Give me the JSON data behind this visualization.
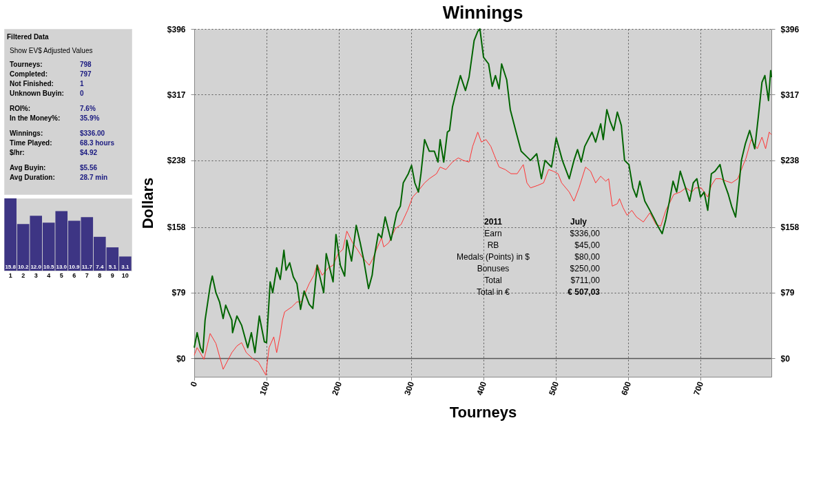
{
  "chart_data": [
    {
      "type": "other",
      "title": "Filtered Data",
      "annotations": [
        "Show EV$ Adjusted Values",
        "Tourneys:",
        "798",
        "Completed:",
        "797",
        "Not Finished:",
        "1",
        "Unknown Buyin:",
        "0",
        "ROI%:",
        "7.6%",
        "In the Money%:",
        "35.9%",
        "Winnings:",
        "$336.00",
        "Time Played:",
        "68.3 hours",
        "$/hr:",
        "$4.92",
        "Avg Buyin:",
        "$5.56",
        "Avg Duration:",
        "28.7 min"
      ]
    },
    {
      "type": "bar",
      "categories": [
        "1",
        "2",
        "3",
        "4",
        "5",
        "6",
        "7",
        "8",
        "9",
        "10"
      ],
      "values": [
        15.8,
        10.2,
        12.0,
        10.5,
        13.0,
        10.9,
        11.7,
        7.4,
        5.1,
        3.1
      ],
      "color": "#3d3584",
      "value_labels": [
        "15.8",
        "10.2",
        "12.0",
        "10.5",
        "13.0",
        "10.9",
        "11.7",
        "7.4",
        "5.1",
        "3.1"
      ]
    },
    {
      "type": "line",
      "title": "Winnings",
      "xlabel": "Tourneys",
      "ylabel": "Dollars",
      "xlim": [
        0,
        798
      ],
      "xticks": [
        0,
        100,
        200,
        300,
        400,
        500,
        600,
        700
      ],
      "ylim": [
        -22,
        396
      ],
      "yticks": [
        {
          "value": 0,
          "label": "$0"
        },
        {
          "value": 79,
          "label": "$79"
        },
        {
          "value": 158,
          "label": "$158"
        },
        {
          "value": 238,
          "label": "$238"
        },
        {
          "value": 317,
          "label": "$317"
        },
        {
          "value": 396,
          "label": "$396"
        }
      ],
      "y2lim": [
        -22,
        396
      ],
      "y2ticks": [
        {
          "value": 0,
          "label": "$0"
        },
        {
          "value": 79,
          "label": "$79"
        },
        {
          "value": 158,
          "label": "$158"
        },
        {
          "value": 238,
          "label": "$238"
        },
        {
          "value": 317,
          "label": "$317"
        },
        {
          "value": 396,
          "label": "$396"
        }
      ],
      "grid": true,
      "marker": "none",
      "ref_lines": [
        {
          "axis": "y",
          "value": 0,
          "color": "#555555"
        }
      ],
      "annotations": [
        "2011",
        "July",
        "Earn",
        "$336,00",
        "RB",
        "$45,00",
        "Medals (Points) in $",
        "$80,00",
        "Bonuses",
        "$250,00",
        "Total",
        "$711,00",
        "Total in €",
        "€ 507,03"
      ],
      "series": [
        {
          "color": "#ff3333",
          "x": [
            0,
            4,
            13.5,
            22,
            30,
            40,
            52,
            59,
            65.5,
            72,
            82,
            88.5,
            99,
            103.5,
            110,
            114,
            119,
            122,
            125,
            135,
            142,
            148,
            159,
            165.5,
            170,
            177,
            185.5,
            192,
            199,
            205.5,
            211,
            219,
            225.5,
            232,
            242,
            247,
            252,
            259,
            262,
            269,
            278,
            286,
            295,
            302,
            308.5,
            318.5,
            325,
            335,
            340,
            348,
            357,
            365,
            372,
            380,
            385,
            392,
            397,
            403.5,
            410,
            415,
            421.5,
            430,
            438,
            446.5,
            455,
            460,
            465,
            475,
            483,
            490,
            496.5,
            503,
            508,
            518.5,
            525,
            532,
            541,
            548,
            555,
            562,
            569,
            573,
            578,
            585,
            588,
            593,
            598.5,
            605,
            611.5,
            621,
            630,
            638.5,
            645,
            652,
            658.5,
            663,
            672,
            680,
            688,
            693,
            701,
            710,
            715,
            721,
            727.5,
            736,
            743,
            751.5,
            756.5,
            763,
            770,
            778.5,
            785,
            790,
            795,
            798
          ],
          "values": [
            4,
            13,
            -1,
            30,
            18,
            -13,
            7,
            15,
            19,
            7,
            -1,
            -4,
            -20,
            13,
            26,
            7,
            29,
            46,
            56,
            62,
            68,
            68,
            90,
            100,
            113,
            100,
            109,
            112,
            126,
            131,
            153,
            139,
            131,
            122,
            112,
            120,
            131,
            145,
            134,
            139,
            156,
            161,
            178,
            194,
            200,
            211,
            216,
            222,
            230,
            227,
            236,
            241,
            238,
            236,
            255,
            272,
            260,
            263,
            255,
            244,
            230,
            227,
            222,
            222,
            233,
            211,
            205,
            208,
            211,
            227,
            225,
            222,
            211,
            200,
            189,
            205,
            230,
            225,
            211,
            219,
            213,
            216,
            183,
            186,
            192,
            181,
            172,
            178,
            170,
            164,
            175,
            161,
            159,
            178,
            189,
            197,
            200,
            205,
            200,
            205,
            205,
            194,
            208,
            216,
            216,
            213,
            211,
            216,
            227,
            241,
            263,
            252,
            266,
            252,
            272,
            269
          ]
        },
        {
          "color": "#006400",
          "x": [
            0,
            4,
            8.5,
            12,
            15,
            22,
            25,
            30,
            35,
            40,
            43.5,
            52,
            53,
            59,
            65.5,
            74,
            79,
            84,
            90,
            97,
            100,
            105,
            108.5,
            114,
            119,
            124,
            127,
            132,
            137,
            142,
            147,
            152,
            159,
            164,
            170,
            179,
            182.5,
            192,
            196,
            202,
            208,
            211,
            217.5,
            224,
            229.5,
            234,
            241,
            246,
            249,
            254.5,
            259,
            264,
            272,
            280,
            285,
            289,
            296,
            300.5,
            305,
            310,
            313.5,
            318.5,
            325,
            332,
            337,
            340,
            345,
            350,
            353,
            357,
            361.5,
            368,
            375,
            380,
            387,
            392,
            395,
            400,
            407,
            412,
            416.5,
            421.5,
            425,
            432,
            437,
            445,
            452,
            458,
            465,
            473.5,
            480,
            485,
            494,
            500.5,
            509,
            518.5,
            525,
            530,
            535,
            540,
            550,
            555,
            562,
            565.5,
            570.5,
            575,
            580,
            585,
            590.5,
            595,
            601,
            606.5,
            611.5,
            616,
            623,
            630,
            636.5,
            641,
            647,
            652,
            657,
            662,
            667,
            672,
            680,
            685,
            690,
            695,
            700,
            705,
            710,
            715,
            720,
            727,
            732,
            738.5,
            743,
            748.5,
            753.5,
            756.5,
            762,
            768,
            775,
            780,
            785,
            789,
            794,
            797,
            798
          ],
          "values": [
            13,
            31,
            13,
            7,
            46,
            87,
            99,
            79,
            68,
            48,
            64,
            46,
            31,
            51,
            40,
            13,
            31,
            7,
            51,
            20,
            19,
            92,
            79,
            109,
            95,
            130,
            106,
            115,
            98,
            90,
            59,
            81,
            65,
            60,
            112,
            79,
            126,
            92,
            149,
            112,
            99,
            142,
            117,
            160,
            139,
            120,
            84,
            100,
            122,
            150,
            145,
            170,
            142,
            175,
            183,
            211,
            222,
            232,
            211,
            200,
            222,
            263,
            249,
            249,
            236,
            263,
            236,
            272,
            274,
            302,
            318,
            340,
            322,
            338,
            382,
            393,
            396,
            362,
            354,
            327,
            340,
            324,
            354,
            335,
            299,
            272,
            249,
            244,
            238,
            246,
            216,
            238,
            230,
            265,
            238,
            216,
            238,
            251,
            236,
            255,
            272,
            260,
            282,
            263,
            299,
            285,
            274,
            296,
            280,
            238,
            233,
            205,
            194,
            213,
            189,
            178,
            167,
            159,
            150,
            167,
            189,
            213,
            200,
            225,
            203,
            189,
            211,
            216,
            194,
            200,
            178,
            222,
            225,
            233,
            213,
            197,
            183,
            170,
            211,
            238,
            258,
            274,
            252,
            291,
            332,
            340,
            310,
            346,
            338
          ]
        }
      ]
    }
  ]
}
